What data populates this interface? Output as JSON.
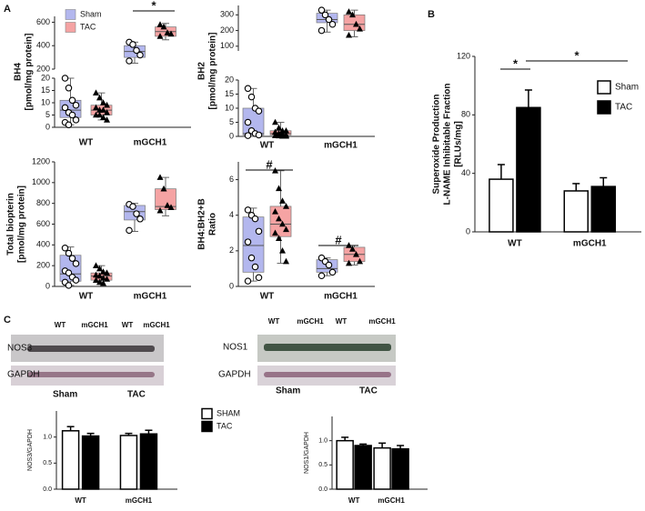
{
  "panel_labels": [
    "A",
    "B",
    "C"
  ],
  "chart_data": [
    {
      "type": "box",
      "ylabel": [
        "BH4",
        "[pmol/mg protein]"
      ],
      "categories": [
        "WT",
        "mGCH1"
      ],
      "ylim": [
        0,
        20
      ],
      "yticks": [
        0,
        5,
        10,
        15,
        20
      ],
      "ylim_break": [
        200,
        650
      ],
      "yticks_break": [
        200,
        400,
        600
      ],
      "legend": "top-left",
      "annotations": [
        "*"
      ],
      "series": [
        {
          "name": "Sham",
          "color": "#b3b7ee",
          "marker": "circle",
          "values": [
            {
              "min": 1,
              "q1": 4,
              "median": 7,
              "q3": 11,
              "max": 20,
              "points": [
                20,
                16,
                11,
                9,
                8,
                6,
                5,
                3,
                2,
                1
              ]
            },
            {
              "min": 250,
              "q1": 300,
              "median": 350,
              "q3": 400,
              "max": 430,
              "points": [
                430,
                410,
                360,
                320,
                270
              ]
            }
          ]
        },
        {
          "name": "TAC",
          "color": "#f5a3a3",
          "marker": "triangle",
          "values": [
            {
              "min": 3,
              "q1": 5,
              "median": 7,
              "q3": 9,
              "max": 14,
              "points": [
                14,
                12,
                10,
                9,
                8,
                7,
                7,
                6,
                5,
                5,
                4,
                3
              ]
            },
            {
              "min": 450,
              "q1": 480,
              "median": 520,
              "q3": 560,
              "max": 590,
              "points": [
                580,
                560,
                510,
                500,
                480
              ]
            }
          ]
        }
      ]
    },
    {
      "type": "box",
      "ylabel": [
        "BH2",
        "[pmol/mg protein]"
      ],
      "categories": [
        "WT",
        "mGCH1"
      ],
      "ylim": [
        0,
        20
      ],
      "yticks": [
        0,
        5,
        10,
        15,
        20
      ],
      "ylim_break": [
        70,
        360
      ],
      "yticks_break": [
        100,
        200,
        300
      ],
      "series": [
        {
          "color": "#b3b7ee",
          "marker": "circle",
          "values": [
            {
              "min": 0,
              "q1": 0.5,
              "median": 1,
              "q3": 10,
              "max": 17,
              "points": [
                17,
                14,
                10,
                9,
                5,
                2,
                1,
                0.5,
                0.3
              ]
            },
            {
              "min": 190,
              "q1": 250,
              "median": 270,
              "q3": 310,
              "max": 330,
              "points": [
                330,
                300,
                270,
                240,
                200
              ]
            }
          ]
        },
        {
          "color": "#f5a3a3",
          "marker": "triangle",
          "values": [
            {
              "min": 0,
              "q1": 0.5,
              "median": 1,
              "q3": 2,
              "max": 5,
              "points": [
                5,
                3,
                2,
                2,
                1.5,
                1,
                1,
                0.5,
                0.3,
                0.2,
                0.1,
                0.1
              ]
            },
            {
              "min": 160,
              "q1": 200,
              "median": 240,
              "q3": 300,
              "max": 330,
              "points": [
                320,
                300,
                240,
                210,
                170
              ]
            }
          ]
        }
      ]
    },
    {
      "type": "box",
      "ylabel": [
        "Total biopterin",
        "[pmol/mg protein]"
      ],
      "categories": [
        "WT",
        "mGCH1"
      ],
      "ylim": [
        0,
        1200
      ],
      "yticks": [
        0,
        200,
        400,
        600,
        800,
        1000,
        1200
      ],
      "series": [
        {
          "color": "#b3b7ee",
          "marker": "circle",
          "values": [
            {
              "min": 10,
              "q1": 50,
              "median": 120,
              "q3": 300,
              "max": 380,
              "points": [
                370,
                320,
                270,
                220,
                150,
                130,
                90,
                60,
                40,
                10
              ]
            },
            {
              "min": 530,
              "q1": 640,
              "median": 720,
              "q3": 780,
              "max": 800,
              "points": [
                790,
                770,
                700,
                650,
                540
              ]
            }
          ]
        },
        {
          "color": "#f5a3a3",
          "marker": "triangle",
          "values": [
            {
              "min": 20,
              "q1": 60,
              "median": 100,
              "q3": 130,
              "max": 200,
              "points": [
                200,
                170,
                140,
                130,
                110,
                100,
                80,
                70,
                60,
                40,
                30
              ]
            },
            {
              "min": 680,
              "q1": 740,
              "median": 770,
              "q3": 940,
              "max": 1050,
              "points": [
                1050,
                940,
                780,
                760,
                730
              ]
            }
          ]
        }
      ]
    },
    {
      "type": "box",
      "ylabel": [
        "BH4:BH2+B",
        "Ratio"
      ],
      "categories": [
        "WT",
        "mGCH1"
      ],
      "ylim": [
        0,
        7
      ],
      "yticks": [
        0,
        2,
        4,
        6
      ],
      "annotations": [
        "#",
        "#"
      ],
      "series": [
        {
          "color": "#b3b7ee",
          "marker": "circle",
          "values": [
            {
              "min": 0.3,
              "q1": 0.8,
              "median": 2.3,
              "q3": 3.9,
              "max": 4.4,
              "points": [
                4.3,
                4.0,
                3.8,
                3.1,
                2.5,
                1.6,
                1.1,
                0.5,
                0.3
              ]
            },
            {
              "min": 0.6,
              "q1": 0.8,
              "median": 1.0,
              "q3": 1.5,
              "max": 1.6,
              "points": [
                1.6,
                1.4,
                1.2,
                0.8,
                0.6
              ]
            }
          ]
        },
        {
          "color": "#f5a3a3",
          "marker": "triangle",
          "values": [
            {
              "min": 1.3,
              "q1": 2.8,
              "median": 3.5,
              "q3": 4.5,
              "max": 6.5,
              "points": [
                6.5,
                5.5,
                4.8,
                4.5,
                4.2,
                3.8,
                3.5,
                3.2,
                3.0,
                2.7,
                2.0,
                1.4
              ]
            },
            {
              "min": 1.2,
              "q1": 1.4,
              "median": 1.8,
              "q3": 2.2,
              "max": 2.3,
              "points": [
                2.3,
                2.1,
                1.8,
                1.4,
                1.3
              ]
            }
          ]
        }
      ]
    },
    {
      "type": "bar",
      "ylabel": [
        "Superoxide Production",
        "L-NAME Inhibitable Fraction",
        "[RLUs/mg]"
      ],
      "categories": [
        "WT",
        "mGCH1"
      ],
      "ylim": [
        0,
        120
      ],
      "yticks": [
        0,
        40,
        80,
        120
      ],
      "legend": "top-right",
      "annotations": [
        "*",
        "*"
      ],
      "series": [
        {
          "name": "Sham",
          "color": "#ffffff",
          "values": [
            36,
            28
          ],
          "errors": [
            10,
            5
          ]
        },
        {
          "name": "TAC",
          "color": "#000000",
          "values": [
            85,
            31
          ],
          "errors": [
            12,
            6
          ]
        }
      ]
    },
    {
      "type": "bar",
      "ylabel": [
        "NOS3/GAPDH"
      ],
      "categories": [
        "WT",
        "mGCH1"
      ],
      "ylim": [
        0,
        1.5
      ],
      "yticks": [
        {
          "value": 0,
          "label": "0.0"
        },
        {
          "value": 0.5,
          "label": "0.5"
        },
        {
          "value": 1,
          "label": "1.0"
        }
      ],
      "legend": "right",
      "series": [
        {
          "name": "SHAM",
          "color": "#ffffff",
          "values": [
            1.12,
            1.03
          ],
          "errors": [
            0.08,
            0.04
          ]
        },
        {
          "name": "TAC",
          "color": "#000000",
          "values": [
            1.02,
            1.06
          ],
          "errors": [
            0.05,
            0.07
          ]
        }
      ]
    },
    {
      "type": "bar",
      "ylabel": [
        "NOS1/GAPDH"
      ],
      "categories": [
        "WT",
        "mGCH1"
      ],
      "ylim": [
        0,
        1.5
      ],
      "yticks": [
        {
          "value": 0,
          "label": "0.0"
        },
        {
          "value": 0.5,
          "label": "0.5"
        },
        {
          "value": 1,
          "label": "1.0"
        }
      ],
      "series": [
        {
          "color": "#ffffff",
          "values": [
            1.0,
            0.85
          ],
          "errors": [
            0.07,
            0.1
          ]
        },
        {
          "color": "#000000",
          "values": [
            0.9,
            0.83
          ],
          "errors": [
            0.03,
            0.07
          ]
        }
      ]
    }
  ],
  "blots": [
    {
      "lanes": [
        "WT",
        "mGCH1",
        "WT",
        "mGCH1"
      ],
      "rows": [
        "NOS3",
        "GAPDH"
      ],
      "groups": [
        "Sham",
        "TAC"
      ]
    },
    {
      "lanes": [
        "WT",
        "mGCH1",
        "WT",
        "mGCH1"
      ],
      "rows": [
        "NOS1",
        "GAPDH"
      ],
      "groups": [
        "Sham",
        "TAC"
      ]
    }
  ]
}
